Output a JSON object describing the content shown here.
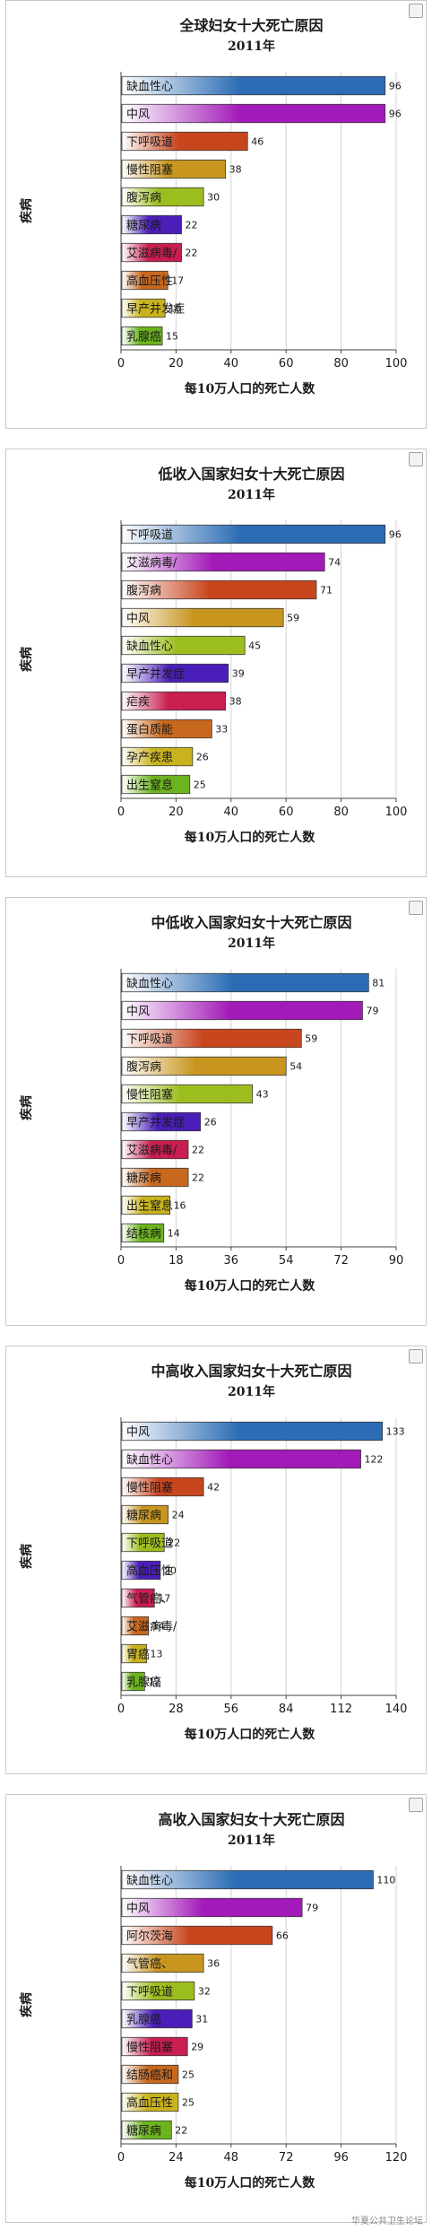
{
  "watermark": "华夏公共卫生论坛",
  "chart_data": [
    {
      "type": "bar",
      "title": "全球妇女十大死亡原因",
      "subtitle": "2011年",
      "xlabel": "每10万人口的死亡人数",
      "ylabel": "疾病",
      "xlim": [
        0,
        100
      ],
      "xticks": [
        0,
        20,
        40,
        60,
        80,
        100
      ],
      "grid": true,
      "categories": [
        "缺血性心",
        "中风",
        "下呼吸道",
        "慢性阻塞",
        "腹泻病",
        "糖尿病",
        "艾滋病毒/",
        "高血压性",
        "早产并发症",
        "乳腺癌"
      ],
      "values": [
        96,
        96,
        46,
        38,
        30,
        22,
        22,
        17,
        16,
        15
      ],
      "colors": [
        "#2b6cb4",
        "#a21ab8",
        "#c8461e",
        "#c8951e",
        "#9cbd1e",
        "#4a1eb8",
        "#c81e50",
        "#c8681e",
        "#c8b21e",
        "#6cb41e"
      ]
    },
    {
      "type": "bar",
      "title": "低收入国家妇女十大死亡原因",
      "subtitle": "2011年",
      "xlabel": "每10万人口的死亡人数",
      "ylabel": "疾病",
      "xlim": [
        0,
        100
      ],
      "xticks": [
        0,
        20,
        40,
        60,
        80,
        100
      ],
      "grid": true,
      "categories": [
        "下呼吸道",
        "艾滋病毒/",
        "腹泻病",
        "中风",
        "缺血性心",
        "早产并发症",
        "疟疾",
        "蛋白质能",
        "孕产疾患",
        "出生窒息"
      ],
      "values": [
        96,
        74,
        71,
        59,
        45,
        39,
        38,
        33,
        26,
        25
      ],
      "colors": [
        "#2b6cb4",
        "#a21ab8",
        "#c8461e",
        "#c8951e",
        "#9cbd1e",
        "#4a1eb8",
        "#c81e50",
        "#c8681e",
        "#c8b21e",
        "#6cb41e"
      ]
    },
    {
      "type": "bar",
      "title": "中低收入国家妇女十大死亡原因",
      "subtitle": "2011年",
      "xlabel": "每10万人口的死亡人数",
      "ylabel": "疾病",
      "xlim": [
        0,
        90
      ],
      "xticks": [
        0,
        18,
        36,
        54,
        72,
        90
      ],
      "grid": true,
      "categories": [
        "缺血性心",
        "中风",
        "下呼吸道",
        "腹泻病",
        "慢性阻塞",
        "早产并发症",
        "艾滋病毒/",
        "糖尿病",
        "出生窒息",
        "结核病"
      ],
      "values": [
        81,
        79,
        59,
        54,
        43,
        26,
        22,
        22,
        16,
        14
      ],
      "colors": [
        "#2b6cb4",
        "#a21ab8",
        "#c8461e",
        "#c8951e",
        "#9cbd1e",
        "#4a1eb8",
        "#c81e50",
        "#c8681e",
        "#c8b21e",
        "#6cb41e"
      ]
    },
    {
      "type": "bar",
      "title": "中高收入国家妇女十大死亡原因",
      "subtitle": "2011年",
      "xlabel": "每10万人口的死亡人数",
      "ylabel": "疾病",
      "xlim": [
        0,
        140
      ],
      "xticks": [
        0,
        28,
        56,
        84,
        112,
        140
      ],
      "grid": true,
      "categories": [
        "中风",
        "缺血性心",
        "慢性阻塞",
        "糖尿病",
        "下呼吸道",
        "高血压性",
        "气管癌、",
        "艾滋病毒/",
        "胃癌",
        "乳腺癌"
      ],
      "values": [
        133,
        122,
        42,
        24,
        22,
        20,
        17,
        14,
        13,
        12
      ],
      "colors": [
        "#2b6cb4",
        "#a21ab8",
        "#c8461e",
        "#c8951e",
        "#9cbd1e",
        "#4a1eb8",
        "#c81e50",
        "#c8681e",
        "#c8b21e",
        "#6cb41e"
      ]
    },
    {
      "type": "bar",
      "title": "高收入国家妇女十大死亡原因",
      "subtitle": "2011年",
      "xlabel": "每10万人口的死亡人数",
      "ylabel": "疾病",
      "xlim": [
        0,
        120
      ],
      "xticks": [
        0,
        24,
        48,
        72,
        96,
        120
      ],
      "grid": true,
      "categories": [
        "缺血性心",
        "中风",
        "阿尔茨海",
        "气管癌、",
        "下呼吸道",
        "乳腺癌",
        "慢性阻塞",
        "结肠癌和",
        "高血压性",
        "糖尿病"
      ],
      "values": [
        110,
        79,
        66,
        36,
        32,
        31,
        29,
        25,
        25,
        22
      ],
      "colors": [
        "#2b6cb4",
        "#a21ab8",
        "#c8461e",
        "#c8951e",
        "#9cbd1e",
        "#4a1eb8",
        "#c81e50",
        "#c8681e",
        "#c8b21e",
        "#6cb41e"
      ]
    }
  ]
}
